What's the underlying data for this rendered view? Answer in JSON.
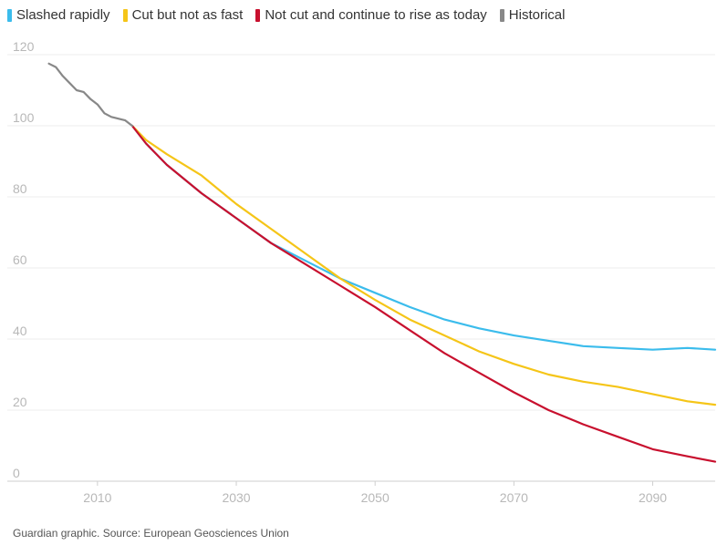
{
  "legend": [
    {
      "label": "Slashed rapidly",
      "color": "#3bbcec"
    },
    {
      "label": "Cut but not as fast",
      "color": "#f5c518"
    },
    {
      "label": "Not cut and continue to rise as today",
      "color": "#c8102e"
    },
    {
      "label": "Historical",
      "color": "#888888"
    }
  ],
  "source": "Guardian graphic. Source: European Geosciences Union",
  "chart_data": {
    "type": "line",
    "title": "",
    "xlabel": "",
    "ylabel": "",
    "xlim": [
      2002,
      2099
    ],
    "ylim": [
      0,
      120
    ],
    "x_ticks": [
      2010,
      2030,
      2050,
      2070,
      2090
    ],
    "y_ticks": [
      0,
      20,
      40,
      60,
      80,
      100,
      120
    ],
    "grid": "horizontal",
    "legend_position": "top",
    "series": [
      {
        "name": "Historical",
        "color": "#888888",
        "x": [
          2003,
          2004,
          2005,
          2006,
          2007,
          2008,
          2009,
          2010,
          2011,
          2012,
          2013,
          2014,
          2015
        ],
        "y": [
          117.5,
          116.5,
          114,
          112,
          110,
          109.5,
          107.5,
          106,
          103.5,
          102.5,
          102,
          101.5,
          100
        ]
      },
      {
        "name": "Slashed rapidly",
        "color": "#3bbcec",
        "x": [
          2015,
          2017,
          2020,
          2025,
          2030,
          2035,
          2040,
          2045,
          2050,
          2055,
          2060,
          2065,
          2070,
          2075,
          2080,
          2085,
          2090,
          2095,
          2099
        ],
        "y": [
          100,
          95,
          89,
          81,
          74,
          67,
          62,
          57,
          53,
          49,
          45.5,
          43,
          41,
          39.5,
          38,
          37.5,
          37,
          37.5,
          37
        ]
      },
      {
        "name": "Cut but not as fast",
        "color": "#f5c518",
        "x": [
          2015,
          2017,
          2020,
          2025,
          2030,
          2035,
          2040,
          2045,
          2050,
          2055,
          2060,
          2065,
          2070,
          2075,
          2080,
          2085,
          2090,
          2095,
          2099
        ],
        "y": [
          100,
          96,
          92,
          86,
          78,
          71,
          64,
          57,
          51,
          45.5,
          41,
          36.5,
          33,
          30,
          28,
          26.5,
          24.5,
          22.5,
          21.5
        ]
      },
      {
        "name": "Not cut and continue to rise as today",
        "color": "#c8102e",
        "x": [
          2015,
          2017,
          2020,
          2025,
          2030,
          2035,
          2040,
          2045,
          2050,
          2055,
          2060,
          2065,
          2070,
          2075,
          2080,
          2085,
          2090,
          2095,
          2099
        ],
        "y": [
          100,
          95,
          89,
          81,
          74,
          67,
          61,
          55,
          49,
          42.5,
          36,
          30.5,
          25,
          20,
          16,
          12.5,
          9,
          7,
          5.5
        ]
      }
    ]
  }
}
